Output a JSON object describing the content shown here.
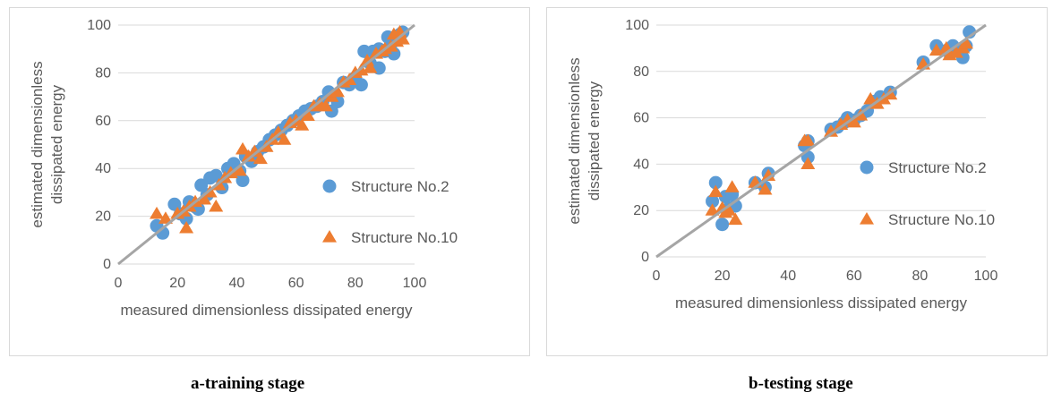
{
  "colors": {
    "series1": "#5b9bd5",
    "series2": "#ed7d31",
    "fit_line": "#a5a5a5",
    "gridline": "#d9d9d9",
    "axis_text": "#595959"
  },
  "captions": {
    "a": "a-training stage",
    "b": "b-testing stage"
  },
  "chart_data": [
    {
      "type": "scatter",
      "xlabel": "measured dimensionless dissipated energy",
      "ylabel": [
        "estimated dimensionless",
        "dissipated energy"
      ],
      "xlim": [
        0,
        100
      ],
      "ylim": [
        0,
        100
      ],
      "xticks": [
        "0",
        "20",
        "40",
        "60",
        "80",
        "100"
      ],
      "yticks": [
        "0",
        "20",
        "40",
        "60",
        "80",
        "100"
      ],
      "grid": "horizontal",
      "legend": "right",
      "reference_line": {
        "x": [
          0,
          100
        ],
        "y": [
          0,
          100
        ]
      },
      "series": [
        {
          "name": "Structure No.2",
          "marker": "circle",
          "points": [
            [
              13,
              16
            ],
            [
              15,
              13
            ],
            [
              19,
              25
            ],
            [
              21,
              21
            ],
            [
              23,
              19
            ],
            [
              24,
              26
            ],
            [
              26,
              24
            ],
            [
              27,
              23
            ],
            [
              28,
              33
            ],
            [
              30,
              29
            ],
            [
              31,
              36
            ],
            [
              33,
              37
            ],
            [
              35,
              32
            ],
            [
              37,
              40
            ],
            [
              39,
              42
            ],
            [
              41,
              39
            ],
            [
              42,
              35
            ],
            [
              43,
              45
            ],
            [
              45,
              43
            ],
            [
              47,
              47
            ],
            [
              49,
              49
            ],
            [
              51,
              52
            ],
            [
              53,
              54
            ],
            [
              55,
              56
            ],
            [
              57,
              58
            ],
            [
              59,
              60
            ],
            [
              61,
              62
            ],
            [
              63,
              64
            ],
            [
              65,
              65
            ],
            [
              67,
              66
            ],
            [
              69,
              68
            ],
            [
              71,
              72
            ],
            [
              72,
              64
            ],
            [
              74,
              68
            ],
            [
              76,
              76
            ],
            [
              78,
              75
            ],
            [
              80,
              78
            ],
            [
              82,
              75
            ],
            [
              83,
              89
            ],
            [
              85,
              84
            ],
            [
              86,
              89
            ],
            [
              88,
              82
            ],
            [
              88,
              90
            ],
            [
              90,
              89
            ],
            [
              91,
              95
            ],
            [
              92,
              92
            ],
            [
              93,
              88
            ],
            [
              95,
              96
            ],
            [
              96,
              97
            ]
          ]
        },
        {
          "name": "Structure No.10",
          "marker": "triangle",
          "points": [
            [
              13,
              21
            ],
            [
              16,
              19
            ],
            [
              20,
              21
            ],
            [
              22,
              22
            ],
            [
              23,
              15
            ],
            [
              24,
              24
            ],
            [
              26,
              26
            ],
            [
              29,
              27
            ],
            [
              31,
              30
            ],
            [
              33,
              24
            ],
            [
              34,
              33
            ],
            [
              36,
              36
            ],
            [
              38,
              38
            ],
            [
              41,
              39
            ],
            [
              42,
              48
            ],
            [
              44,
              45
            ],
            [
              46,
              47
            ],
            [
              48,
              44
            ],
            [
              50,
              49
            ],
            [
              52,
              52
            ],
            [
              54,
              55
            ],
            [
              56,
              52
            ],
            [
              58,
              59
            ],
            [
              60,
              60
            ],
            [
              62,
              58
            ],
            [
              64,
              62
            ],
            [
              66,
              66
            ],
            [
              68,
              67
            ],
            [
              70,
              66
            ],
            [
              72,
              70
            ],
            [
              74,
              72
            ],
            [
              76,
              76
            ],
            [
              78,
              77
            ],
            [
              80,
              80
            ],
            [
              82,
              81
            ],
            [
              84,
              85
            ],
            [
              85,
              82
            ],
            [
              87,
              88
            ],
            [
              89,
              89
            ],
            [
              90,
              90
            ],
            [
              92,
              91
            ],
            [
              93,
              96
            ],
            [
              94,
              93
            ],
            [
              95,
              97
            ],
            [
              96,
              94
            ]
          ]
        }
      ]
    },
    {
      "type": "scatter",
      "xlabel": "measured dimensionless dissipated energy",
      "ylabel": [
        "estimated dimensionless",
        "dissipated energy"
      ],
      "xlim": [
        0,
        100
      ],
      "ylim": [
        0,
        100
      ],
      "xticks": [
        "0",
        "20",
        "40",
        "60",
        "80",
        "100"
      ],
      "yticks": [
        "0",
        "20",
        "40",
        "60",
        "80",
        "100"
      ],
      "grid": "horizontal",
      "legend": "right",
      "reference_line": {
        "x": [
          0,
          100
        ],
        "y": [
          0,
          100
        ]
      },
      "series": [
        {
          "name": "Structure No.2",
          "marker": "circle",
          "points": [
            [
              17,
              24
            ],
            [
              18,
              32
            ],
            [
              20,
              14
            ],
            [
              21,
              26
            ],
            [
              22,
              21
            ],
            [
              23,
              27
            ],
            [
              24,
              22
            ],
            [
              30,
              32
            ],
            [
              33,
              30
            ],
            [
              34,
              36
            ],
            [
              45,
              48
            ],
            [
              46,
              43
            ],
            [
              46,
              50
            ],
            [
              53,
              55
            ],
            [
              55,
              56
            ],
            [
              57,
              58
            ],
            [
              58,
              60
            ],
            [
              60,
              59
            ],
            [
              62,
              61
            ],
            [
              64,
              63
            ],
            [
              66,
              67
            ],
            [
              68,
              69
            ],
            [
              71,
              71
            ],
            [
              81,
              84
            ],
            [
              85,
              91
            ],
            [
              88,
              89
            ],
            [
              90,
              91
            ],
            [
              93,
              86
            ],
            [
              94,
              91
            ],
            [
              95,
              97
            ]
          ]
        },
        {
          "name": "Structure No.10",
          "marker": "triangle",
          "points": [
            [
              17,
              20
            ],
            [
              18,
              28
            ],
            [
              20,
              21
            ],
            [
              21,
              19
            ],
            [
              22,
              20
            ],
            [
              23,
              30
            ],
            [
              24,
              16
            ],
            [
              30,
              32
            ],
            [
              33,
              29
            ],
            [
              34,
              35
            ],
            [
              45,
              50
            ],
            [
              46,
              40
            ],
            [
              46,
              50
            ],
            [
              53,
              54
            ],
            [
              56,
              57
            ],
            [
              58,
              59
            ],
            [
              60,
              58
            ],
            [
              62,
              61
            ],
            [
              65,
              68
            ],
            [
              67,
              66
            ],
            [
              69,
              68
            ],
            [
              71,
              70
            ],
            [
              81,
              83
            ],
            [
              85,
              89
            ],
            [
              88,
              90
            ],
            [
              89,
              87
            ],
            [
              91,
              88
            ],
            [
              93,
              90
            ],
            [
              94,
              92
            ]
          ]
        }
      ]
    }
  ]
}
